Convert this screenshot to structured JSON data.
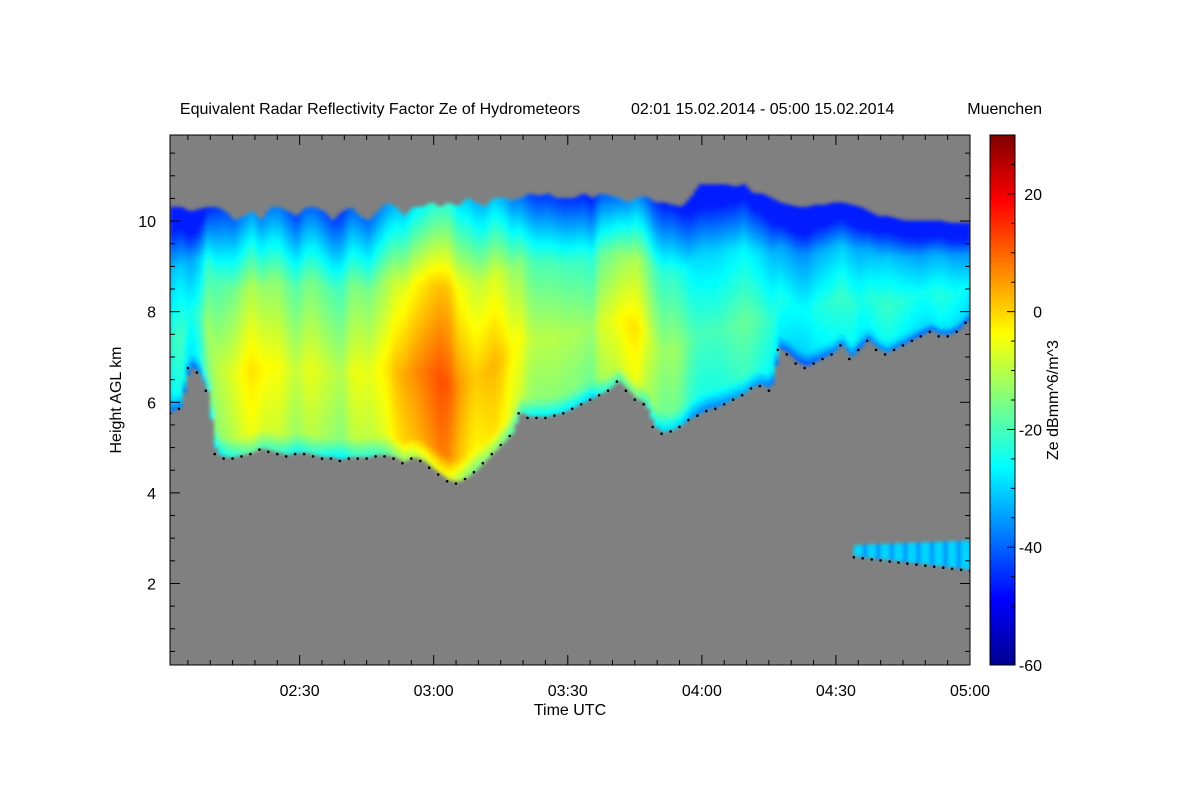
{
  "chart_data": {
    "type": "heatmap",
    "title": "Equivalent Radar Reflectivity Factor Ze of Hydrometeors",
    "time_range": "02:01 15.02.2014 - 05:00 15.02.2014",
    "location": "Muenchen",
    "xlabel": "Time UTC",
    "ylabel": "Height AGL km",
    "xlim_minutes_utc": [
      121,
      300
    ],
    "ylim_km": [
      0.2,
      11.9
    ],
    "x_ticks": [
      {
        "minute": 150,
        "label": "02:30"
      },
      {
        "minute": 180,
        "label": "03:00"
      },
      {
        "minute": 210,
        "label": "03:30"
      },
      {
        "minute": 240,
        "label": "04:00"
      },
      {
        "minute": 270,
        "label": "04:30"
      },
      {
        "minute": 300,
        "label": "05:00"
      }
    ],
    "y_ticks": [
      {
        "value": 2,
        "label": "2"
      },
      {
        "value": 4,
        "label": "4"
      },
      {
        "value": 6,
        "label": "6"
      },
      {
        "value": 8,
        "label": "8"
      },
      {
        "value": 10,
        "label": "10"
      }
    ],
    "colorbar": {
      "label": "Ze dBmm^6/m^3",
      "range": [
        -60,
        30
      ],
      "ticks": [
        {
          "value": -60,
          "label": "-60"
        },
        {
          "value": -40,
          "label": "-40"
        },
        {
          "value": -20,
          "label": "-20"
        },
        {
          "value": 0,
          "label": "0"
        },
        {
          "value": 20,
          "label": "20"
        }
      ],
      "stops": [
        "#00008f",
        "#0000ff",
        "#0080ff",
        "#00ffff",
        "#80ff80",
        "#ffff00",
        "#ff8000",
        "#ff0000",
        "#800000"
      ]
    },
    "background_color": "#808080",
    "echo_profile": {
      "minutes": [
        121,
        123,
        125,
        127,
        129,
        131,
        133,
        135,
        137,
        139,
        141,
        143,
        145,
        147,
        149,
        151,
        153,
        155,
        157,
        159,
        161,
        163,
        165,
        167,
        169,
        171,
        173,
        175,
        177,
        179,
        181,
        183,
        185,
        187,
        189,
        191,
        193,
        195,
        197,
        199,
        201,
        203,
        205,
        207,
        209,
        211,
        213,
        215,
        217,
        219,
        221,
        223,
        225,
        227,
        229,
        231,
        233,
        235,
        237,
        239,
        241,
        243,
        245,
        247,
        249,
        251,
        253,
        255,
        257,
        259,
        261,
        263,
        265,
        267,
        269,
        271,
        273,
        275,
        277,
        279,
        281,
        283,
        285,
        287,
        289,
        291,
        293,
        295,
        297,
        299
      ],
      "base_km": [
        5.8,
        5.9,
        6.8,
        6.7,
        6.3,
        4.9,
        4.8,
        4.8,
        4.85,
        4.9,
        5.0,
        4.95,
        4.9,
        4.85,
        4.9,
        4.9,
        4.85,
        4.8,
        4.8,
        4.75,
        4.8,
        4.8,
        4.8,
        4.85,
        4.85,
        4.8,
        4.7,
        4.8,
        4.75,
        4.6,
        4.45,
        4.3,
        4.25,
        4.35,
        4.5,
        4.7,
        4.9,
        5.1,
        5.3,
        5.8,
        5.7,
        5.7,
        5.7,
        5.75,
        5.8,
        5.9,
        6.0,
        6.1,
        6.2,
        6.3,
        6.5,
        6.3,
        6.1,
        6.0,
        5.5,
        5.35,
        5.4,
        5.5,
        5.65,
        5.75,
        5.85,
        5.9,
        6.0,
        6.1,
        6.2,
        6.35,
        6.4,
        6.3,
        7.2,
        7.1,
        6.9,
        6.8,
        6.9,
        7.0,
        7.1,
        7.3,
        7.0,
        7.2,
        7.4,
        7.2,
        7.1,
        7.2,
        7.3,
        7.4,
        7.5,
        7.6,
        7.5,
        7.5,
        7.6,
        7.8
      ],
      "top_km": [
        10.3,
        10.3,
        10.2,
        10.25,
        10.3,
        10.3,
        10.2,
        10.0,
        10.1,
        10.2,
        10.0,
        10.3,
        10.3,
        10.2,
        10.1,
        10.3,
        10.3,
        10.2,
        10.0,
        10.2,
        10.3,
        10.1,
        10.0,
        10.2,
        10.4,
        10.3,
        10.1,
        10.3,
        10.3,
        10.4,
        10.3,
        10.4,
        10.3,
        10.5,
        10.4,
        10.3,
        10.5,
        10.5,
        10.45,
        10.5,
        10.6,
        10.55,
        10.6,
        10.5,
        10.5,
        10.5,
        10.6,
        10.5,
        10.6,
        10.55,
        10.5,
        10.4,
        10.5,
        10.55,
        10.4,
        10.4,
        10.35,
        10.3,
        10.5,
        10.8,
        10.8,
        10.8,
        10.8,
        10.75,
        10.8,
        10.6,
        10.6,
        10.5,
        10.4,
        10.35,
        10.3,
        10.3,
        10.35,
        10.35,
        10.4,
        10.4,
        10.35,
        10.3,
        10.2,
        10.1,
        10.1,
        10.05,
        10.0,
        10.0,
        10.0,
        10.0,
        10.0,
        9.95,
        9.95,
        9.95
      ],
      "peak_dbz": [
        -22,
        -20,
        -25,
        -22,
        -12,
        -10,
        -8,
        -6,
        -3,
        -1,
        -3,
        -4,
        -4,
        -7,
        -9,
        -6,
        -6,
        -8,
        -9,
        -11,
        -6,
        -5,
        -6,
        -4,
        -2,
        2,
        4,
        6,
        8,
        10,
        12,
        11,
        6,
        3,
        1,
        2,
        3,
        1,
        -3,
        -4,
        -9,
        -10,
        -10,
        -10,
        -11,
        -11,
        -12,
        -13,
        -7,
        -6,
        -4,
        -2,
        -1,
        -6,
        -10,
        -13,
        -12,
        -14,
        -18,
        -20,
        -20,
        -20,
        -19,
        -18,
        -17,
        -18,
        -20,
        -22,
        -24,
        -25,
        -26,
        -26,
        -24,
        -23,
        -22,
        -21,
        -22,
        -24,
        -23,
        -22,
        -21,
        -22,
        -23,
        -24,
        -25,
        -24,
        -23,
        -24,
        -25,
        -26
      ]
    },
    "lower_band": {
      "minutes": [
        274,
        296,
        300
      ],
      "base_km": [
        2.6,
        2.4,
        2.3
      ],
      "top_km": [
        2.85,
        2.9,
        2.95
      ],
      "peak_dbz": -30
    },
    "annotations": [
      "black dots along cloud base mark the ceilometer-detected cloud base height"
    ]
  }
}
